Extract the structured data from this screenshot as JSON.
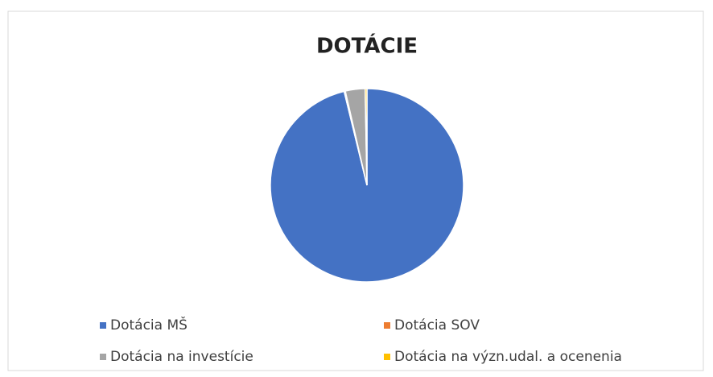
{
  "chart_data": {
    "type": "pie",
    "title": "DOTÁCIE",
    "categories": [
      "Dotácia MŠ",
      "Dotácia SOV",
      "Dotácia na investície",
      "Dotácia na význ.udal. a ocenenia"
    ],
    "values": [
      96.2,
      0.2,
      3.3,
      0.3
    ],
    "colors": [
      "#4472c4",
      "#ed7d31",
      "#a5a5a5",
      "#ffc000"
    ],
    "legend": "bottom"
  }
}
